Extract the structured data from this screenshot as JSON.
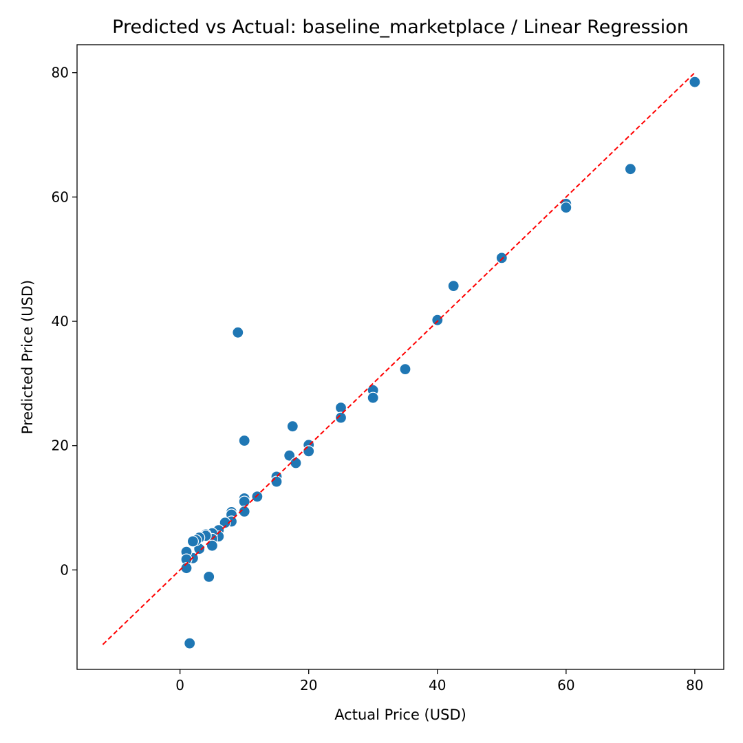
{
  "chart_data": {
    "type": "scatter",
    "title": "Predicted vs Actual: baseline_marketplace / Linear Regression",
    "xlabel": "Actual Price (USD)",
    "ylabel": "Predicted Price (USD)",
    "xlim": [
      -16,
      84.5
    ],
    "ylim": [
      -16,
      84.5
    ],
    "xticks": [
      0,
      20,
      40,
      60,
      80
    ],
    "yticks": [
      0,
      20,
      40,
      60,
      80
    ],
    "grid": false,
    "point_color": "#1f77b4",
    "point_edge_color": "#ffffff",
    "reference_line": {
      "style": "dashed",
      "color": "#ff0000",
      "from": [
        -12,
        -12
      ],
      "to": [
        80,
        80
      ]
    },
    "points": [
      [
        80,
        78.5
      ],
      [
        70,
        64.5
      ],
      [
        60,
        58.9
      ],
      [
        60,
        58.3
      ],
      [
        50,
        50.2
      ],
      [
        42.5,
        45.7
      ],
      [
        40,
        40.2
      ],
      [
        35,
        32.3
      ],
      [
        30,
        28.9
      ],
      [
        30,
        27.7
      ],
      [
        25,
        26.1
      ],
      [
        25,
        24.5
      ],
      [
        20,
        20.1
      ],
      [
        20,
        19.1
      ],
      [
        17.5,
        23.1
      ],
      [
        17,
        18.4
      ],
      [
        18,
        17.2
      ],
      [
        15,
        15.0
      ],
      [
        15,
        14.2
      ],
      [
        12,
        11.8
      ],
      [
        10,
        20.8
      ],
      [
        10,
        11.5
      ],
      [
        10,
        11.0
      ],
      [
        10,
        9.4
      ],
      [
        9,
        38.2
      ],
      [
        8,
        9.3
      ],
      [
        8,
        8.9
      ],
      [
        8,
        7.8
      ],
      [
        7,
        7.6
      ],
      [
        6,
        6.4
      ],
      [
        6,
        5.4
      ],
      [
        5,
        5.9
      ],
      [
        5,
        5.0
      ],
      [
        5,
        3.9
      ],
      [
        4.5,
        -1.1
      ],
      [
        4,
        5.7
      ],
      [
        4,
        5.5
      ],
      [
        3,
        5.2
      ],
      [
        3,
        3.4
      ],
      [
        2.5,
        4.8
      ],
      [
        2,
        4.6
      ],
      [
        2,
        1.9
      ],
      [
        1.5,
        -11.8
      ],
      [
        1,
        2.9
      ],
      [
        1,
        1.7
      ],
      [
        1,
        0.3
      ]
    ]
  }
}
